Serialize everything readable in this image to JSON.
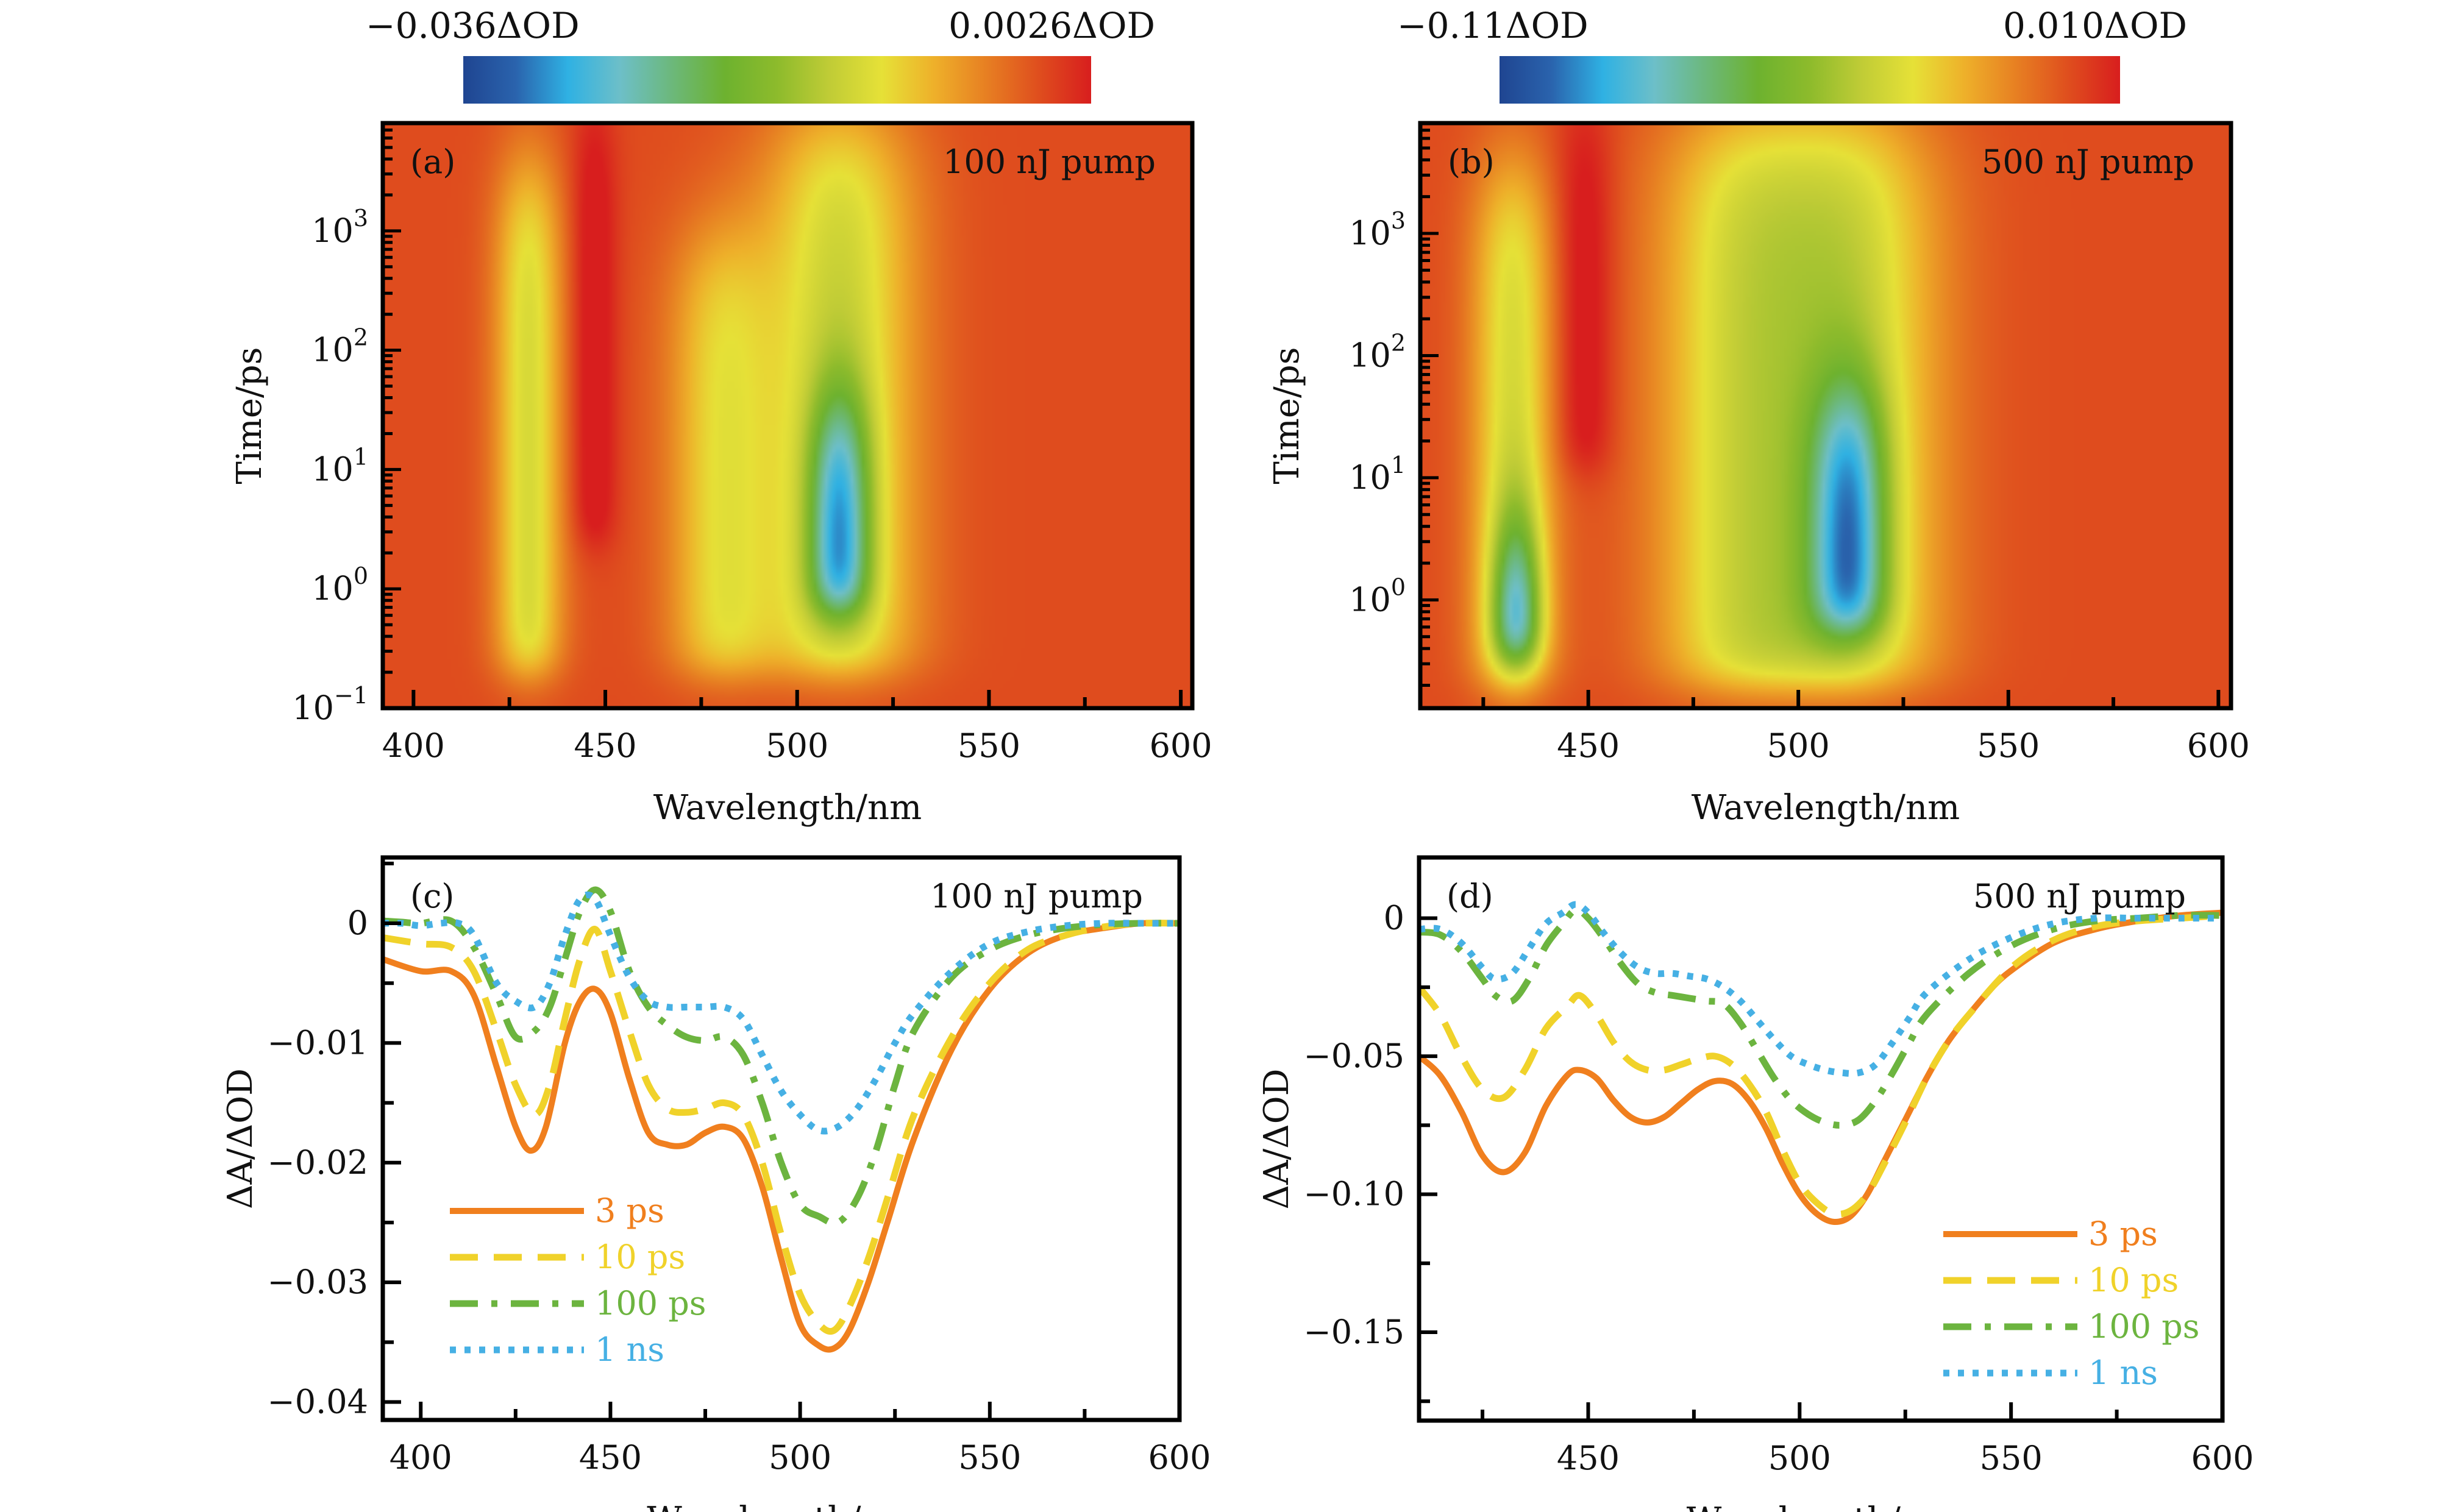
{
  "figure": {
    "colormap": [
      "#1f4591",
      "#2a63ad",
      "#2fb1e3",
      "#6dbfc8",
      "#6cb87a",
      "#6db22f",
      "#8dbb2c",
      "#c0cc36",
      "#e6e137",
      "#eeb02a",
      "#e77f22",
      "#df4e1e",
      "#d81e1e"
    ]
  },
  "chart_data": [
    {
      "id": "a",
      "type": "heatmap",
      "panel_tag": "(a)",
      "annotation": "100 nJ pump",
      "xlabel": "Wavelength/nm",
      "ylabel": "Time/ps",
      "xlim": [
        392,
        603
      ],
      "ylim": [
        0.1,
        8000
      ],
      "yscale": "log",
      "xticks": [
        400,
        450,
        500,
        550,
        600
      ],
      "xtick_labels": [
        "400",
        "450",
        "500",
        "550",
        "600"
      ],
      "yticks": [
        0.1,
        1,
        10,
        100,
        1000
      ],
      "ytick_labels": [
        [
          "10",
          "−1"
        ],
        [
          "10",
          "0"
        ],
        [
          "10",
          "1"
        ],
        [
          "10",
          "2"
        ],
        [
          "10",
          "3"
        ]
      ],
      "colorbar": {
        "min_label": "−0.036ΔOD",
        "max_label": "0.0026ΔOD",
        "min": -0.036,
        "max": 0.0026
      },
      "features": [
        {
          "kind": "bleach",
          "center_nm": 430,
          "width_nm": 9,
          "t_from": 0.2,
          "t_to": 3000,
          "depth": 0.55
        },
        {
          "kind": "positive",
          "center_nm": 447,
          "width_nm": 6,
          "t_from": 2.5,
          "t_to": 8000,
          "depth": 1.0
        },
        {
          "kind": "bleach",
          "center_nm": 480,
          "width_nm": 14,
          "t_from": 0.2,
          "t_to": 800,
          "depth": 0.45
        },
        {
          "kind": "bleach",
          "center_nm": 511,
          "width_nm": 20,
          "t_from": 0.2,
          "t_to": 8000,
          "depth": 0.6
        },
        {
          "kind": "deep_bleach",
          "center_nm": 511,
          "width_nm": 8,
          "t_from": 0.7,
          "t_to": 30,
          "depth": 1.0
        }
      ]
    },
    {
      "id": "b",
      "type": "heatmap",
      "panel_tag": "(b)",
      "annotation": "500 nJ pump",
      "xlabel": "Wavelength/nm",
      "ylabel": "Time/ps",
      "xlim": [
        410,
        603
      ],
      "ylim": [
        0.13,
        8000
      ],
      "yscale": "log",
      "xticks": [
        450,
        500,
        550,
        600
      ],
      "xtick_labels": [
        "450",
        "500",
        "550",
        "600"
      ],
      "yticks": [
        1,
        10,
        100,
        1000
      ],
      "ytick_labels": [
        [
          "10",
          "0"
        ],
        [
          "10",
          "1"
        ],
        [
          "10",
          "2"
        ],
        [
          "10",
          "3"
        ]
      ],
      "colorbar": {
        "min_label": "−0.11ΔOD",
        "max_label": "0.010ΔOD",
        "min": -0.11,
        "max": 0.01
      },
      "features": [
        {
          "kind": "bleach",
          "center_nm": 432,
          "width_nm": 10,
          "t_from": 0.2,
          "t_to": 3000,
          "depth": 0.55
        },
        {
          "kind": "deep_bleach",
          "center_nm": 433,
          "width_nm": 6,
          "t_from": 0.35,
          "t_to": 3,
          "depth": 1.0
        },
        {
          "kind": "positive",
          "center_nm": 449,
          "width_nm": 7,
          "t_from": 12,
          "t_to": 8000,
          "depth": 1.0
        },
        {
          "kind": "bleach",
          "center_nm": 485,
          "width_nm": 20,
          "t_from": 0.2,
          "t_to": 8000,
          "depth": 0.5
        },
        {
          "kind": "bleach",
          "center_nm": 512,
          "width_nm": 22,
          "t_from": 0.2,
          "t_to": 8000,
          "depth": 0.6
        },
        {
          "kind": "deep_bleach",
          "center_nm": 512,
          "width_nm": 9,
          "t_from": 0.6,
          "t_to": 40,
          "depth": 1.0
        }
      ]
    },
    {
      "id": "c",
      "type": "line",
      "panel_tag": "(c)",
      "annotation": "100 nJ pump",
      "xlabel": "Wavelength/nm",
      "ylabel": "ΔA/ΔOD",
      "xlim": [
        390,
        600
      ],
      "ylim": [
        -0.0415,
        0.0055
      ],
      "xticks": [
        400,
        450,
        500,
        550,
        600
      ],
      "xtick_labels": [
        "400",
        "450",
        "500",
        "550",
        "600"
      ],
      "yticks": [
        0,
        -0.01,
        -0.02,
        -0.03,
        -0.04
      ],
      "ytick_labels": [
        "0",
        "−0.01",
        "−0.02",
        "−0.03",
        "−0.04"
      ],
      "legend_position": "lower-left",
      "series": [
        {
          "name": "3 ps",
          "color": "#f07f1e",
          "style": "solid",
          "x": [
            390,
            400,
            408,
            414,
            420,
            425,
            429,
            433,
            438,
            442,
            446,
            450,
            455,
            460,
            465,
            470,
            475,
            480,
            485,
            490,
            495,
            500,
            505,
            509,
            513,
            518,
            523,
            530,
            540,
            550,
            560,
            570,
            580,
            590,
            600
          ],
          "y": [
            -0.003,
            -0.004,
            -0.004,
            -0.006,
            -0.012,
            -0.017,
            -0.019,
            -0.017,
            -0.01,
            -0.0065,
            -0.0055,
            -0.0075,
            -0.013,
            -0.0175,
            -0.0185,
            -0.0185,
            -0.0175,
            -0.017,
            -0.018,
            -0.022,
            -0.028,
            -0.0335,
            -0.0353,
            -0.0355,
            -0.034,
            -0.03,
            -0.025,
            -0.018,
            -0.0105,
            -0.0055,
            -0.0025,
            -0.001,
            -0.0004,
            0.0,
            0.0
          ]
        },
        {
          "name": "10 ps",
          "color": "#f0d22a",
          "style": "dashed",
          "x": [
            390,
            400,
            408,
            414,
            420,
            425,
            430,
            434,
            438,
            442,
            446,
            450,
            455,
            460,
            465,
            470,
            475,
            480,
            485,
            490,
            495,
            500,
            505,
            509,
            513,
            518,
            523,
            530,
            540,
            550,
            560,
            570,
            580,
            590,
            600
          ],
          "y": [
            -0.0012,
            -0.0017,
            -0.002,
            -0.004,
            -0.009,
            -0.0135,
            -0.016,
            -0.0135,
            -0.008,
            -0.003,
            -0.0005,
            -0.004,
            -0.009,
            -0.0135,
            -0.0155,
            -0.0158,
            -0.0155,
            -0.015,
            -0.016,
            -0.02,
            -0.026,
            -0.031,
            -0.0335,
            -0.034,
            -0.032,
            -0.028,
            -0.023,
            -0.016,
            -0.0095,
            -0.005,
            -0.0022,
            -0.001,
            -0.0003,
            0.0,
            0.0
          ]
        },
        {
          "name": "100 ps",
          "color": "#6cb43f",
          "style": "dashdot",
          "x": [
            390,
            395,
            400,
            408,
            414,
            420,
            425,
            430,
            434,
            438,
            442,
            446,
            450,
            455,
            460,
            465,
            470,
            475,
            480,
            485,
            490,
            495,
            500,
            505,
            510,
            515,
            520,
            525,
            530,
            540,
            550,
            560,
            570,
            580,
            590,
            600
          ],
          "y": [
            0.0002,
            0.0001,
            0.0,
            0.0002,
            -0.002,
            -0.006,
            -0.0095,
            -0.009,
            -0.007,
            -0.003,
            0.001,
            0.0028,
            0.001,
            -0.004,
            -0.007,
            -0.0085,
            -0.0095,
            -0.0098,
            -0.0095,
            -0.011,
            -0.015,
            -0.02,
            -0.0235,
            -0.0245,
            -0.025,
            -0.023,
            -0.019,
            -0.0135,
            -0.009,
            -0.0045,
            -0.0022,
            -0.001,
            -0.0004,
            -0.0001,
            0.0,
            0.0
          ]
        },
        {
          "name": "1 ns",
          "color": "#46b0e4",
          "style": "dotted",
          "x": [
            390,
            395,
            400,
            405,
            410,
            414,
            420,
            425,
            430,
            434,
            438,
            442,
            446,
            450,
            455,
            460,
            465,
            470,
            475,
            480,
            485,
            490,
            495,
            500,
            505,
            510,
            515,
            520,
            525,
            530,
            540,
            550,
            560,
            570,
            580,
            590,
            600
          ],
          "y": [
            0.0,
            0.0,
            -0.0002,
            0.0,
            0.0,
            -0.001,
            -0.005,
            -0.0065,
            -0.007,
            -0.005,
            -0.001,
            0.002,
            0.002,
            -0.001,
            -0.0045,
            -0.0065,
            -0.007,
            -0.007,
            -0.007,
            -0.007,
            -0.008,
            -0.011,
            -0.014,
            -0.016,
            -0.0173,
            -0.017,
            -0.0155,
            -0.013,
            -0.01,
            -0.0075,
            -0.004,
            -0.0017,
            -0.0007,
            -0.0002,
            0.0,
            0.0,
            0.0
          ]
        }
      ]
    },
    {
      "id": "d",
      "type": "line",
      "panel_tag": "(d)",
      "annotation": "500 nJ pump",
      "xlabel": "Wavelength/nm",
      "ylabel": "ΔA/ΔOD",
      "xlim": [
        410,
        600
      ],
      "ylim": [
        -0.182,
        0.022
      ],
      "xticks": [
        450,
        500,
        550,
        600
      ],
      "xtick_labels": [
        "450",
        "500",
        "550",
        "600"
      ],
      "yticks": [
        0,
        -0.05,
        -0.1,
        -0.15
      ],
      "ytick_labels": [
        "0",
        "−0.05",
        "−0.10",
        "−0.15"
      ],
      "legend_position": "lower-right",
      "series": [
        {
          "name": "3 ps",
          "color": "#f07f1e",
          "style": "solid",
          "x": [
            410,
            415,
            420,
            425,
            430,
            435,
            440,
            445,
            448,
            452,
            456,
            460,
            464,
            468,
            472,
            476,
            480,
            484,
            488,
            492,
            496,
            500,
            504,
            508,
            512,
            516,
            520,
            525,
            530,
            535,
            540,
            545,
            550,
            560,
            570,
            580,
            590,
            600
          ],
          "y": [
            -0.05,
            -0.057,
            -0.07,
            -0.086,
            -0.092,
            -0.085,
            -0.068,
            -0.057,
            -0.055,
            -0.058,
            -0.066,
            -0.072,
            -0.074,
            -0.072,
            -0.067,
            -0.062,
            -0.059,
            -0.06,
            -0.066,
            -0.076,
            -0.089,
            -0.1,
            -0.107,
            -0.11,
            -0.108,
            -0.1,
            -0.088,
            -0.073,
            -0.058,
            -0.045,
            -0.035,
            -0.026,
            -0.019,
            -0.009,
            -0.004,
            -0.001,
            0.001,
            0.002
          ]
        },
        {
          "name": "10 ps",
          "color": "#f0d22a",
          "style": "dashed",
          "x": [
            410,
            415,
            420,
            425,
            430,
            435,
            440,
            445,
            448,
            452,
            456,
            460,
            464,
            468,
            472,
            476,
            480,
            484,
            488,
            492,
            496,
            500,
            504,
            508,
            512,
            516,
            520,
            525,
            530,
            535,
            540,
            550,
            560,
            570,
            580,
            590,
            600
          ],
          "y": [
            -0.025,
            -0.035,
            -0.05,
            -0.062,
            -0.065,
            -0.055,
            -0.04,
            -0.032,
            -0.028,
            -0.035,
            -0.045,
            -0.052,
            -0.055,
            -0.055,
            -0.053,
            -0.051,
            -0.05,
            -0.053,
            -0.06,
            -0.07,
            -0.084,
            -0.096,
            -0.103,
            -0.107,
            -0.106,
            -0.1,
            -0.089,
            -0.074,
            -0.058,
            -0.045,
            -0.035,
            -0.018,
            -0.008,
            -0.003,
            -0.001,
            0.0,
            0.001
          ]
        },
        {
          "name": "100 ps",
          "color": "#6cb43f",
          "style": "dashdot",
          "x": [
            410,
            415,
            420,
            425,
            428,
            432,
            436,
            440,
            444,
            447,
            450,
            454,
            458,
            462,
            466,
            470,
            474,
            478,
            482,
            486,
            490,
            494,
            498,
            502,
            506,
            510,
            514,
            518,
            522,
            526,
            530,
            540,
            550,
            560,
            570,
            580,
            590,
            600
          ],
          "y": [
            -0.005,
            -0.006,
            -0.012,
            -0.022,
            -0.028,
            -0.03,
            -0.022,
            -0.01,
            -0.002,
            0.003,
            0.0,
            -0.008,
            -0.017,
            -0.024,
            -0.027,
            -0.028,
            -0.029,
            -0.03,
            -0.031,
            -0.038,
            -0.048,
            -0.058,
            -0.066,
            -0.071,
            -0.074,
            -0.075,
            -0.073,
            -0.066,
            -0.056,
            -0.045,
            -0.035,
            -0.02,
            -0.01,
            -0.004,
            -0.001,
            0.0,
            0.001,
            0.001
          ]
        },
        {
          "name": "1 ns",
          "color": "#46b0e4",
          "style": "dotted",
          "x": [
            410,
            415,
            420,
            425,
            428,
            432,
            436,
            440,
            444,
            447,
            450,
            454,
            458,
            462,
            466,
            470,
            474,
            478,
            482,
            486,
            490,
            494,
            498,
            502,
            506,
            510,
            514,
            518,
            522,
            526,
            530,
            540,
            550,
            560,
            570,
            580,
            590,
            600
          ],
          "y": [
            -0.004,
            -0.004,
            -0.009,
            -0.018,
            -0.022,
            -0.02,
            -0.011,
            -0.002,
            0.002,
            0.005,
            0.002,
            -0.006,
            -0.013,
            -0.018,
            -0.02,
            -0.02,
            -0.021,
            -0.022,
            -0.025,
            -0.03,
            -0.037,
            -0.044,
            -0.05,
            -0.053,
            -0.055,
            -0.056,
            -0.056,
            -0.053,
            -0.045,
            -0.036,
            -0.027,
            -0.015,
            -0.007,
            -0.002,
            0.0,
            0.0,
            0.0,
            0.0
          ]
        }
      ]
    }
  ]
}
